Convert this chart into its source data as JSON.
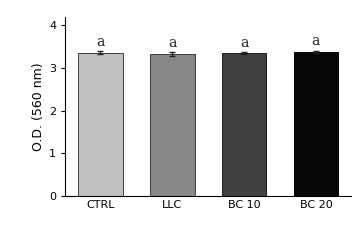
{
  "categories": [
    "CTRL",
    "LLC",
    "BC 10",
    "BC 20"
  ],
  "values": [
    3.36,
    3.32,
    3.35,
    3.37
  ],
  "errors": [
    0.03,
    0.05,
    0.02,
    0.03
  ],
  "bar_colors": [
    "#c0c0c0",
    "#888888",
    "#404040",
    "#060606"
  ],
  "bar_edgecolors": [
    "#404040",
    "#404040",
    "#1a1a1a",
    "#000000"
  ],
  "sig_labels": [
    "a",
    "a",
    "a",
    "a"
  ],
  "ylabel": "O.D. (560 nm)",
  "ylim": [
    0,
    4.2
  ],
  "yticks": [
    0,
    1,
    2,
    3,
    4
  ],
  "background_color": "#ffffff",
  "bar_width": 0.62,
  "sig_fontsize": 10,
  "ylabel_fontsize": 9,
  "tick_fontsize": 8,
  "errorbar_color": "#222222",
  "errorbar_capsize": 2.5,
  "errorbar_linewidth": 1.0
}
